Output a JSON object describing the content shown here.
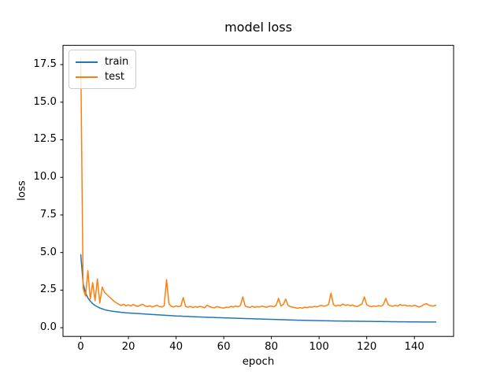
{
  "figure": {
    "background": "#ffffff"
  },
  "chart_data": {
    "type": "line",
    "title": "model loss",
    "xlabel": "epoch",
    "ylabel": "loss",
    "grid": false,
    "x_ticks": [
      0,
      20,
      40,
      60,
      80,
      100,
      120,
      140
    ],
    "y_ticks": [
      0,
      2.5,
      5,
      7.5,
      10,
      12.5,
      15,
      17.5
    ],
    "y_tick_labels": [
      "0.0",
      "2.5",
      "5.0",
      "7.5",
      "10.0",
      "12.5",
      "15.0",
      "17.5"
    ],
    "xlim": [
      -7.45,
      156.45
    ],
    "ylim": [
      -0.58,
      18.78
    ],
    "legend": {
      "position": "upper-left",
      "entries": [
        "train",
        "test"
      ]
    },
    "x_description": "epoch index 0-149, one value per epoch",
    "series": [
      {
        "name": "train",
        "color": "#1f77b4",
        "values": [
          4.85,
          2.95,
          2.32,
          1.98,
          1.76,
          1.6,
          1.48,
          1.39,
          1.31,
          1.25,
          1.2,
          1.16,
          1.13,
          1.1,
          1.08,
          1.06,
          1.04,
          1.02,
          1.01,
          0.99,
          0.98,
          0.97,
          0.96,
          0.95,
          0.94,
          0.93,
          0.92,
          0.91,
          0.9,
          0.89,
          0.88,
          0.87,
          0.86,
          0.85,
          0.84,
          0.83,
          0.82,
          0.81,
          0.8,
          0.79,
          0.78,
          0.775,
          0.77,
          0.76,
          0.755,
          0.75,
          0.74,
          0.735,
          0.73,
          0.72,
          0.715,
          0.71,
          0.7,
          0.695,
          0.69,
          0.685,
          0.68,
          0.67,
          0.665,
          0.66,
          0.655,
          0.65,
          0.645,
          0.64,
          0.635,
          0.63,
          0.625,
          0.62,
          0.615,
          0.61,
          0.605,
          0.6,
          0.595,
          0.59,
          0.585,
          0.58,
          0.575,
          0.57,
          0.565,
          0.56,
          0.555,
          0.55,
          0.545,
          0.54,
          0.535,
          0.53,
          0.525,
          0.52,
          0.515,
          0.51,
          0.505,
          0.5,
          0.497,
          0.494,
          0.49,
          0.487,
          0.484,
          0.48,
          0.477,
          0.474,
          0.47,
          0.467,
          0.464,
          0.46,
          0.457,
          0.454,
          0.45,
          0.448,
          0.446,
          0.444,
          0.442,
          0.44,
          0.438,
          0.436,
          0.434,
          0.432,
          0.43,
          0.428,
          0.426,
          0.424,
          0.422,
          0.42,
          0.418,
          0.416,
          0.414,
          0.412,
          0.41,
          0.408,
          0.406,
          0.404,
          0.402,
          0.4,
          0.398,
          0.396,
          0.394,
          0.392,
          0.39,
          0.389,
          0.388,
          0.387,
          0.386,
          0.385,
          0.384,
          0.383,
          0.382,
          0.381,
          0.38,
          0.379,
          0.378,
          0.377
        ]
      },
      {
        "name": "test",
        "color": "#ff7f0e",
        "values": [
          17.9,
          2.6,
          2.1,
          3.8,
          1.9,
          3.0,
          1.8,
          3.25,
          1.65,
          2.7,
          2.35,
          2.2,
          2.05,
          1.9,
          1.75,
          1.65,
          1.55,
          1.48,
          1.56,
          1.45,
          1.52,
          1.44,
          1.55,
          1.46,
          1.42,
          1.5,
          1.56,
          1.45,
          1.4,
          1.46,
          1.38,
          1.44,
          1.5,
          1.4,
          1.38,
          1.46,
          3.2,
          1.6,
          1.42,
          1.38,
          1.45,
          1.4,
          1.44,
          2.0,
          1.42,
          1.36,
          1.42,
          1.34,
          1.4,
          1.36,
          1.42,
          1.38,
          1.33,
          1.5,
          1.4,
          1.35,
          1.32,
          1.4,
          1.37,
          1.33,
          1.3,
          1.37,
          1.34,
          1.42,
          1.37,
          1.44,
          1.39,
          1.48,
          2.05,
          1.44,
          1.38,
          1.35,
          1.42,
          1.35,
          1.4,
          1.37,
          1.44,
          1.39,
          1.36,
          1.42,
          1.44,
          1.39,
          1.5,
          1.95,
          1.45,
          1.55,
          1.9,
          1.48,
          1.4,
          1.36,
          1.33,
          1.29,
          1.34,
          1.3,
          1.37,
          1.33,
          1.39,
          1.36,
          1.42,
          1.38,
          1.44,
          1.49,
          1.43,
          1.47,
          1.54,
          2.3,
          1.54,
          1.44,
          1.5,
          1.46,
          1.57,
          1.48,
          1.53,
          1.46,
          1.51,
          1.44,
          1.41,
          1.49,
          1.58,
          2.05,
          1.53,
          1.44,
          1.39,
          1.45,
          1.41,
          1.47,
          1.43,
          1.53,
          1.95,
          1.53,
          1.46,
          1.43,
          1.49,
          1.44,
          1.54,
          1.47,
          1.51,
          1.44,
          1.47,
          1.43,
          1.49,
          1.44,
          1.37,
          1.44,
          1.54,
          1.6,
          1.51,
          1.46,
          1.44,
          1.5
        ]
      }
    ]
  }
}
